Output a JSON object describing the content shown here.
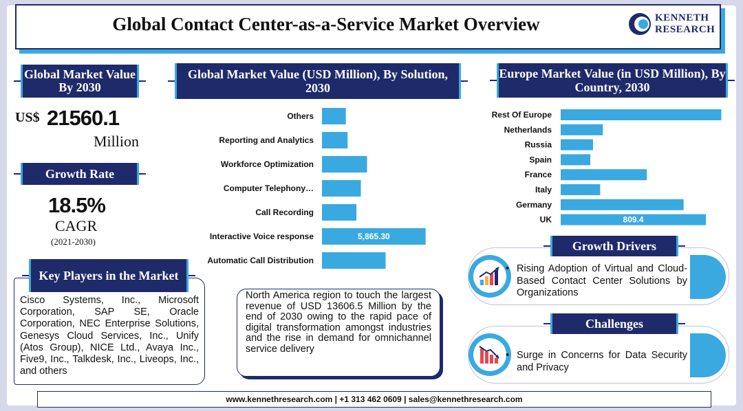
{
  "title": "Global Contact Center-as-a-Service Market Overview",
  "logo": {
    "line1": "KENNETH",
    "line2": "RESEARCH"
  },
  "market_value": {
    "heading": "Global Market Value By 2030",
    "currency": "US$",
    "value": "21560.1",
    "unit": "Million"
  },
  "growth": {
    "heading": "Growth Rate",
    "value": "18.5%",
    "label": "CAGR",
    "period": "(2021-2030)"
  },
  "players": {
    "heading": "Key Players in the Market",
    "text": "Cisco Systems, Inc., Microsoft Corporation, SAP SE, Oracle Corporation, NEC Enterprise Solutions, Genesys Cloud Services, Inc., Unify (Atos Group), NICE Ltd., Avaya Inc., Five9, Inc., Talkdesk, Inc., Liveops, Inc., and others"
  },
  "note": "North America region to touch the largest revenue of USD 13606.5 Million by the end of 2030 owing to the rapid pace of digital transformation amongst industries and the rise in demand for omnichannel service delivery",
  "drivers": {
    "heading": "Growth Drivers",
    "text": "Rising Adoption of Virtual and Cloud-Based Contact Center Solutions by Organizations"
  },
  "challenges": {
    "heading": "Challenges",
    "text": "Surge in Concerns for Data Security and Privacy"
  },
  "footer": "www.kennethresearch.com | +1 313 462 0609 | sales@kennethresearch.com",
  "colors": {
    "navy": "#1f2a6b",
    "accent": "#3aa9e0"
  },
  "chart_data": [
    {
      "type": "bar",
      "orientation": "horizontal",
      "title": "Global Market Value (USD Million), By Solution, 2030",
      "categories": [
        "Others",
        "Reporting and Analytics",
        "Workforce Optimization",
        "Computer Telephony…",
        "Call Recording",
        "Interactive Voice response",
        "Automatic Call Distribution"
      ],
      "values": [
        1350,
        1450,
        2550,
        2200,
        1950,
        5865.3,
        3600
      ],
      "data_labels": [
        "",
        "",
        "",
        "",
        "",
        "5,865.30",
        ""
      ],
      "xlim": [
        0,
        6500
      ]
    },
    {
      "type": "bar",
      "orientation": "horizontal",
      "title": "Europe Market Value (in USD Million), By Country, 2030",
      "categories": [
        "Rest Of Europe",
        "Netherlands",
        "Russia",
        "Spain",
        "France",
        "Italy",
        "Germany",
        "UK"
      ],
      "values": [
        895,
        235,
        180,
        165,
        480,
        220,
        685,
        809.4
      ],
      "data_labels": [
        "",
        "",
        "",
        "",
        "",
        "",
        "",
        "809.4"
      ],
      "xlim": [
        0,
        920
      ]
    }
  ]
}
